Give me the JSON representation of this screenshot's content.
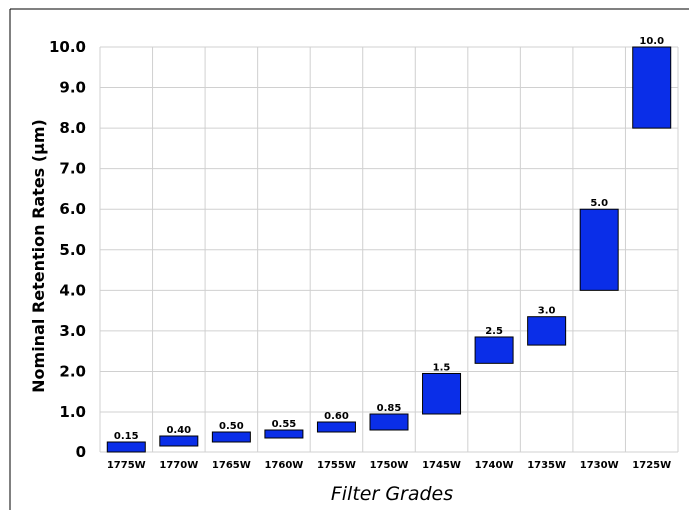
{
  "chart_data": {
    "type": "bar",
    "subtype": "floating-range",
    "title": "",
    "xlabel": "Filter Grades",
    "ylabel": "Nominal Retention Rates (µm)",
    "ylim": [
      0,
      10.0
    ],
    "yticks": [
      "0",
      "1.0",
      "2.0",
      "3.0",
      "4.0",
      "5.0",
      "6.0",
      "7.0",
      "8.0",
      "9.0",
      "10.0"
    ],
    "grid": true,
    "legend": "none",
    "bar_color": "#0a2ee8",
    "categories": [
      "1775W",
      "1770W",
      "1765W",
      "1760W",
      "1755W",
      "1750W",
      "1745W",
      "1740W",
      "1735W",
      "1730W",
      "1725W"
    ],
    "labels": [
      "0.15",
      "0.40",
      "0.50",
      "0.55",
      "0.60",
      "0.85",
      "1.5",
      "2.5",
      "3.0",
      "5.0",
      "10.0"
    ],
    "low": [
      0.0,
      0.15,
      0.25,
      0.35,
      0.5,
      0.55,
      0.95,
      2.2,
      2.65,
      4.0,
      8.0
    ],
    "high": [
      0.25,
      0.4,
      0.5,
      0.55,
      0.75,
      0.95,
      1.95,
      2.85,
      3.35,
      6.0,
      10.0
    ]
  }
}
